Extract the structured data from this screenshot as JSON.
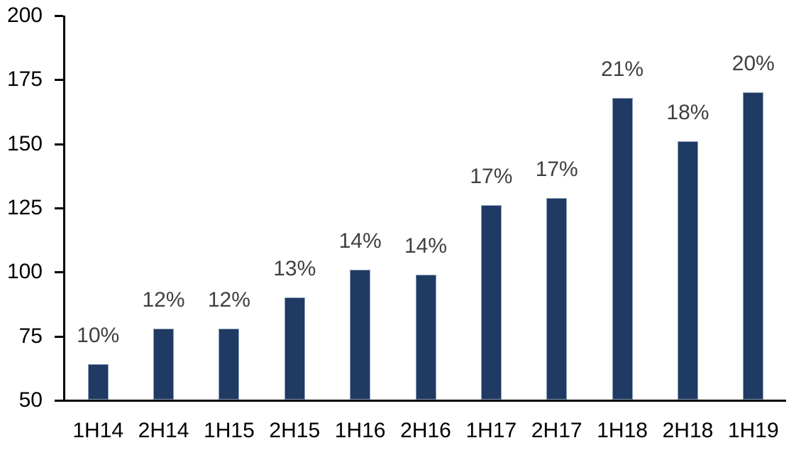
{
  "chart_data": {
    "type": "bar",
    "title": "",
    "xlabel": "",
    "ylabel": "",
    "categories": [
      "1H14",
      "2H14",
      "1H15",
      "2H15",
      "1H16",
      "2H16",
      "1H17",
      "2H17",
      "1H18",
      "2H18",
      "1H19"
    ],
    "values": [
      64,
      78,
      78,
      90,
      101,
      99,
      126,
      129,
      168,
      151,
      170
    ],
    "bar_labels": [
      "10%",
      "12%",
      "12%",
      "13%",
      "14%",
      "14%",
      "17%",
      "17%",
      "21%",
      "18%",
      "20%"
    ],
    "ylim": [
      50,
      200
    ],
    "yticks": [
      50,
      75,
      100,
      125,
      150,
      175,
      200
    ],
    "grid": false,
    "legend": false,
    "colors": {
      "bar_fill": "#1F3A63",
      "bar_edge": "#8FA0BA",
      "bar_label_text": "#404040",
      "axis_text": "#000000",
      "axis_line": "#000000",
      "background": "#FFFFFF"
    }
  }
}
